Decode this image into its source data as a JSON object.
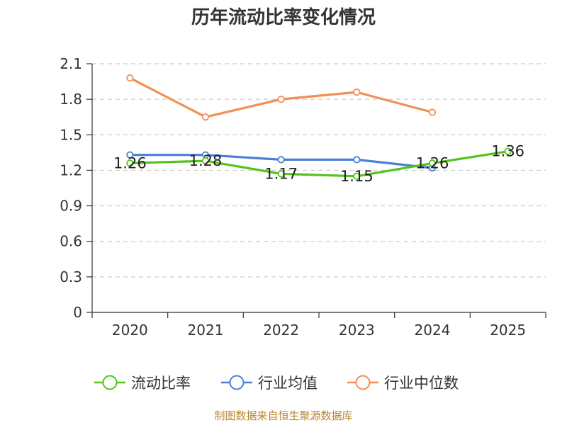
{
  "chart_data": {
    "type": "line",
    "title": "历年流动比率变化情况",
    "categories": [
      "2020",
      "2021",
      "2022",
      "2023",
      "2024",
      "2025"
    ],
    "y_ticks": [
      "0",
      "0.3",
      "0.6",
      "0.9",
      "1.2",
      "1.5",
      "1.8",
      "2.1"
    ],
    "ylim": [
      0,
      2.1
    ],
    "grid": true,
    "legend_position": "bottom",
    "series": [
      {
        "name": "流动比率",
        "color": "#52c41a",
        "values": [
          1.26,
          1.28,
          1.17,
          1.15,
          1.26,
          1.36
        ],
        "data_labels": [
          "1.26",
          "1.28",
          "1.17",
          "1.15",
          "1.26",
          "1.36"
        ]
      },
      {
        "name": "行业均值",
        "color": "#4a7fd4",
        "values": [
          1.33,
          1.33,
          1.29,
          1.29,
          1.22,
          null
        ]
      },
      {
        "name": "行业中位数",
        "color": "#f28f55",
        "values": [
          1.98,
          1.65,
          1.8,
          1.86,
          1.69,
          null
        ]
      }
    ],
    "source": "制图数据来自恒生聚源数据库"
  }
}
